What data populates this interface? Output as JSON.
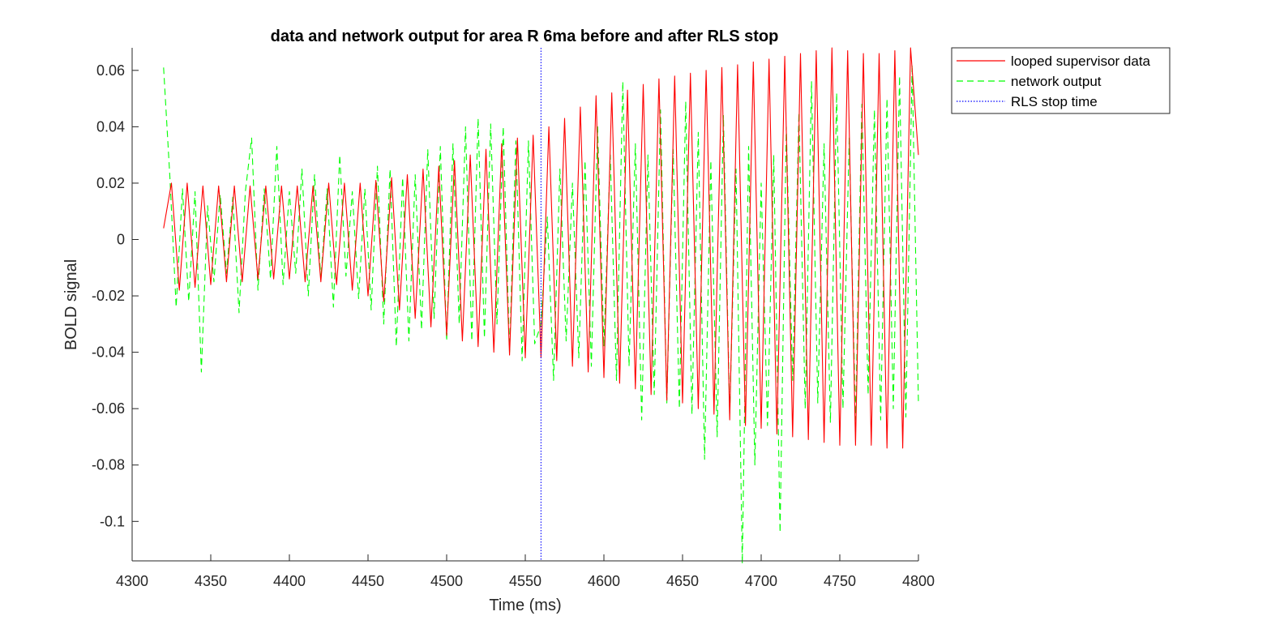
{
  "chart_data": {
    "type": "line",
    "title": "data and network output for area R 6ma before and after RLS stop",
    "xlabel": "Time (ms)",
    "ylabel": "BOLD signal",
    "xlim": [
      4300,
      4800
    ],
    "ylim": [
      -0.114,
      0.068
    ],
    "xticks": [
      4300,
      4350,
      4400,
      4450,
      4500,
      4550,
      4600,
      4650,
      4700,
      4750,
      4800
    ],
    "xtick_labels": [
      "4300",
      "4350",
      "4400",
      "4450",
      "4500",
      "4550",
      "4600",
      "4650",
      "4700",
      "4750",
      "4800"
    ],
    "yticks": [
      0.06,
      0.04,
      0.02,
      0,
      -0.02,
      -0.04,
      -0.06,
      -0.08,
      -0.1
    ],
    "ytick_labels": [
      "0.06",
      "0.04",
      "0.02",
      "0",
      "-0.02",
      "-0.04",
      "-0.06",
      "-0.08",
      "-0.1"
    ],
    "grid": false,
    "legend_position": "outside-top-right",
    "rls_stop_time": 4560,
    "series": [
      {
        "name": "looped supervisor data",
        "style": "solid",
        "color": "#ff0000",
        "x": [
          4320,
          4325,
          4330,
          4335,
          4340,
          4345,
          4350,
          4355,
          4360,
          4365,
          4370,
          4375,
          4380,
          4385,
          4390,
          4395,
          4400,
          4405,
          4410,
          4415,
          4420,
          4425,
          4430,
          4435,
          4440,
          4445,
          4450,
          4455,
          4460,
          4465,
          4470,
          4475,
          4480,
          4485,
          4490,
          4495,
          4500,
          4505,
          4510,
          4515,
          4520,
          4525,
          4530,
          4535,
          4540,
          4545,
          4550,
          4555,
          4560,
          4565,
          4570,
          4575,
          4580,
          4585,
          4590,
          4595,
          4600,
          4605,
          4610,
          4615,
          4620,
          4625,
          4630,
          4635,
          4640,
          4645,
          4650,
          4655,
          4660,
          4665,
          4670,
          4675,
          4680,
          4685,
          4690,
          4695,
          4700,
          4705,
          4710,
          4715,
          4720,
          4725,
          4730,
          4735,
          4740,
          4745,
          4750,
          4755,
          4760,
          4765,
          4770,
          4775,
          4780,
          4785,
          4790,
          4795,
          4800
        ],
        "y": [
          0.004,
          0.02,
          -0.018,
          0.02,
          -0.017,
          0.019,
          -0.016,
          0.019,
          -0.015,
          0.019,
          -0.015,
          0.019,
          -0.014,
          0.019,
          -0.014,
          0.019,
          -0.014,
          0.019,
          -0.015,
          0.019,
          -0.015,
          0.02,
          -0.016,
          0.02,
          -0.018,
          0.02,
          -0.02,
          0.021,
          -0.022,
          0.022,
          -0.025,
          0.023,
          -0.028,
          0.025,
          -0.031,
          0.026,
          -0.034,
          0.028,
          -0.036,
          0.03,
          -0.038,
          0.032,
          -0.04,
          0.034,
          -0.041,
          0.036,
          -0.042,
          0.037,
          -0.042,
          0.04,
          -0.043,
          0.043,
          -0.045,
          0.047,
          -0.047,
          0.051,
          -0.049,
          0.052,
          -0.051,
          0.053,
          -0.053,
          0.055,
          -0.055,
          0.057,
          -0.057,
          0.058,
          -0.058,
          0.059,
          -0.06,
          0.06,
          -0.062,
          0.061,
          -0.064,
          0.062,
          -0.066,
          0.063,
          -0.067,
          0.064,
          -0.069,
          0.065,
          -0.07,
          0.066,
          -0.071,
          0.067,
          -0.072,
          0.068,
          -0.073,
          0.067,
          -0.073,
          0.066,
          -0.073,
          0.066,
          -0.074,
          0.067,
          -0.074,
          0.068,
          0.03
        ]
      },
      {
        "name": "network output",
        "style": "dashed",
        "color": "#00ff00",
        "x": [
          4320,
          4324,
          4328,
          4332,
          4336,
          4340,
          4344,
          4348,
          4352,
          4356,
          4360,
          4364,
          4368,
          4372,
          4376,
          4380,
          4384,
          4388,
          4392,
          4396,
          4400,
          4404,
          4408,
          4412,
          4416,
          4420,
          4424,
          4428,
          4432,
          4436,
          4440,
          4444,
          4448,
          4452,
          4456,
          4460,
          4464,
          4468,
          4472,
          4476,
          4480,
          4484,
          4488,
          4492,
          4496,
          4500,
          4504,
          4508,
          4512,
          4516,
          4520,
          4524,
          4528,
          4532,
          4536,
          4540,
          4544,
          4548,
          4552,
          4556,
          4560,
          4564,
          4568,
          4572,
          4576,
          4580,
          4584,
          4588,
          4592,
          4596,
          4600,
          4604,
          4608,
          4612,
          4616,
          4620,
          4624,
          4628,
          4632,
          4636,
          4640,
          4644,
          4648,
          4652,
          4656,
          4660,
          4664,
          4668,
          4672,
          4676,
          4680,
          4684,
          4688,
          4692,
          4696,
          4700,
          4704,
          4708,
          4712,
          4716,
          4720,
          4724,
          4728,
          4732,
          4736,
          4740,
          4744,
          4748,
          4752,
          4756,
          4760,
          4764,
          4768,
          4772,
          4776,
          4780,
          4784,
          4788,
          4792,
          4796,
          4800
        ],
        "y": [
          0.061,
          0.022,
          -0.024,
          0.018,
          -0.022,
          0.017,
          -0.047,
          0.012,
          -0.015,
          0.016,
          -0.012,
          0.015,
          -0.026,
          0.017,
          0.036,
          -0.018,
          0.018,
          -0.014,
          0.033,
          -0.016,
          0.017,
          -0.012,
          0.025,
          -0.02,
          0.023,
          -0.014,
          0.018,
          -0.024,
          0.03,
          -0.013,
          0.017,
          -0.021,
          0.018,
          -0.025,
          0.026,
          -0.03,
          0.025,
          -0.038,
          0.022,
          -0.036,
          0.023,
          -0.032,
          0.032,
          -0.028,
          0.033,
          -0.036,
          0.034,
          -0.03,
          0.04,
          -0.036,
          0.043,
          -0.035,
          0.041,
          -0.03,
          0.04,
          -0.04,
          0.035,
          -0.043,
          0.035,
          -0.037,
          -0.03,
          0.008,
          -0.05,
          0.025,
          -0.036,
          0.02,
          -0.042,
          0.028,
          -0.045,
          0.04,
          -0.038,
          0.03,
          -0.05,
          0.056,
          -0.045,
          0.034,
          -0.064,
          0.03,
          -0.055,
          0.046,
          -0.058,
          0.032,
          -0.06,
          0.049,
          -0.062,
          0.038,
          -0.078,
          0.028,
          -0.07,
          0.044,
          -0.062,
          0.025,
          -0.115,
          0.033,
          -0.08,
          0.02,
          -0.066,
          0.03,
          -0.104,
          0.04,
          -0.05,
          0.045,
          -0.06,
          0.056,
          -0.058,
          0.034,
          -0.065,
          0.052,
          -0.06,
          0.036,
          -0.064,
          0.048,
          -0.055,
          0.046,
          -0.064,
          0.05,
          -0.06,
          0.058,
          -0.063,
          0.062,
          -0.058
        ]
      },
      {
        "name": "RLS stop time",
        "style": "dotted",
        "color": "#0000ff"
      }
    ]
  }
}
